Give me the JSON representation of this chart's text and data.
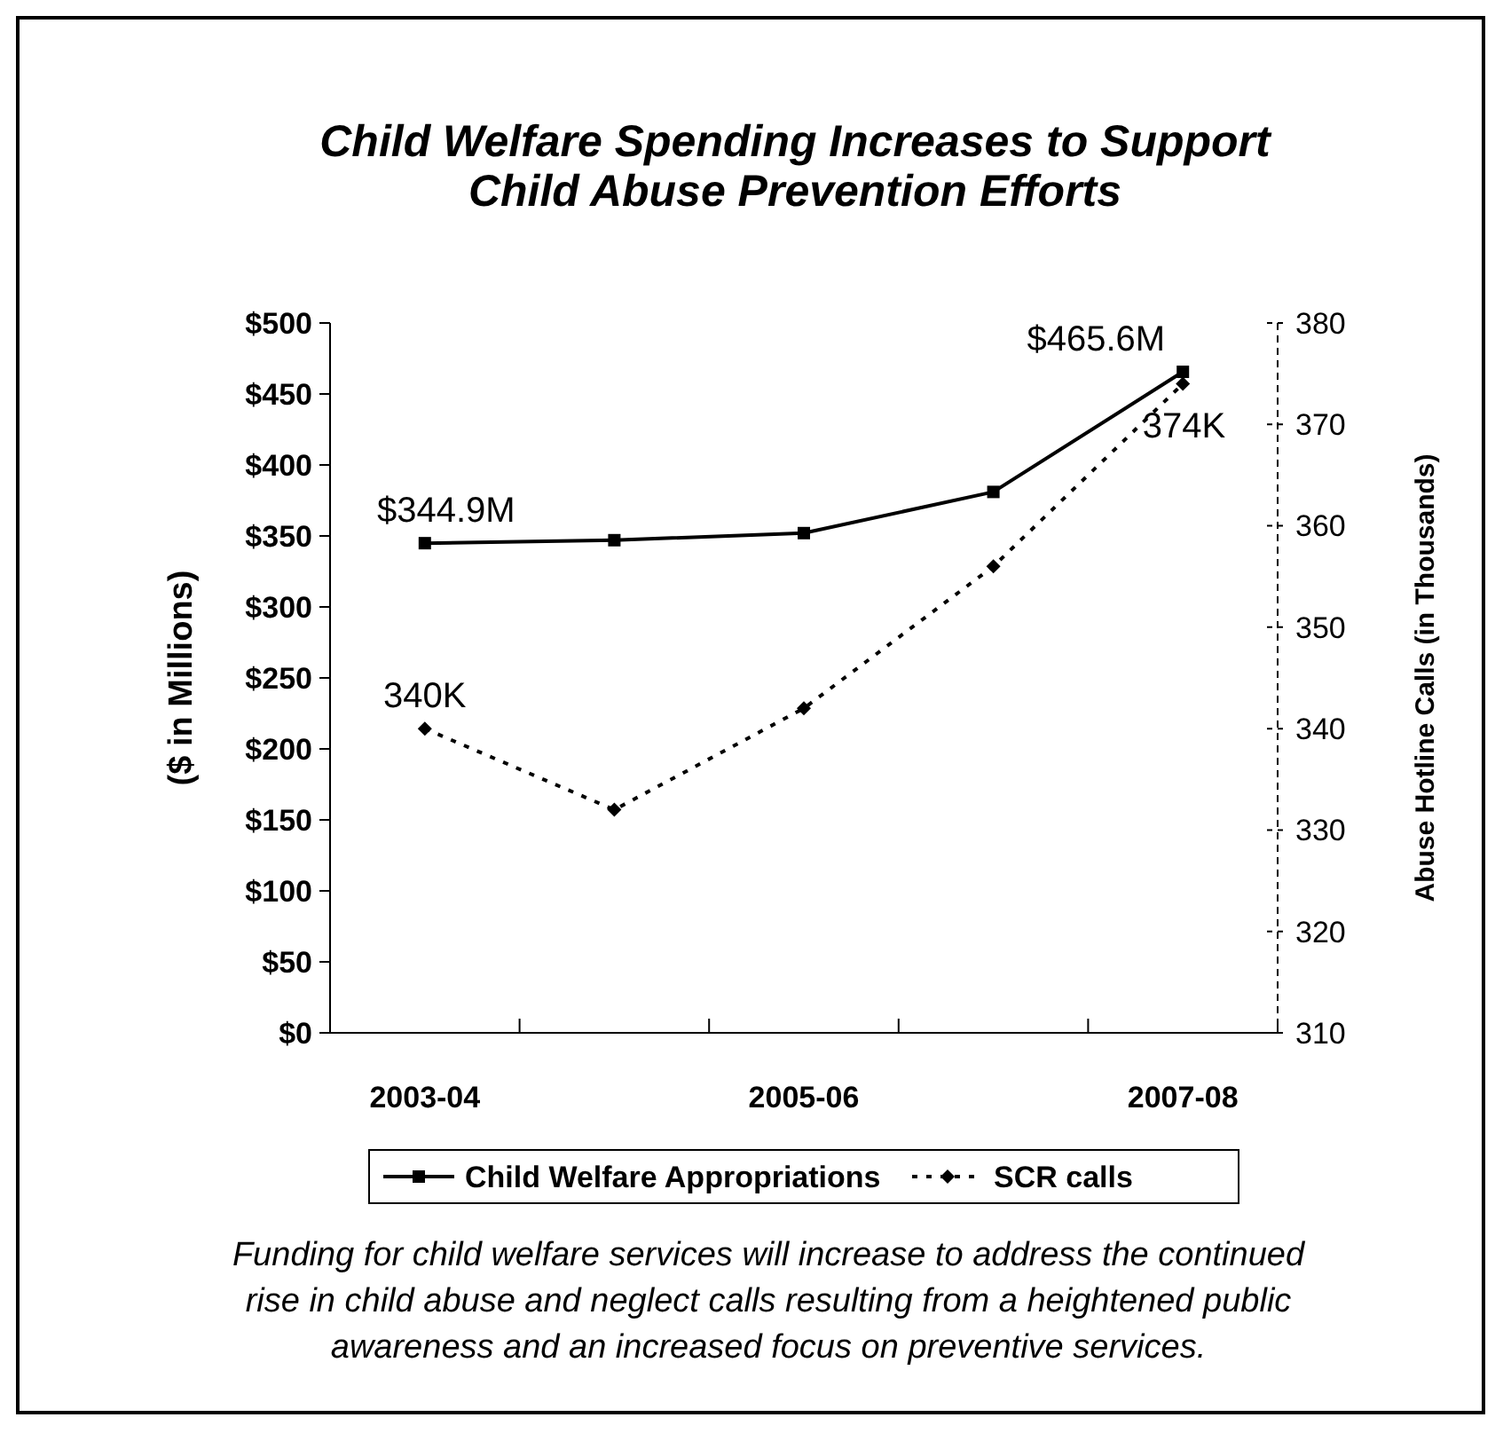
{
  "chart_data": {
    "type": "line",
    "title": "Child Welfare Spending Increases to Support Child Abuse Prevention Efforts",
    "ylabel": "($ in Millions)",
    "y2label": "Abuse Hotline Calls (in Thousands)",
    "categories": [
      "2003-04",
      null,
      "2005-06",
      null,
      "2007-08"
    ],
    "series": [
      {
        "name": "Child Welfare Appropriations",
        "color": "#000000",
        "values": [
          344.9,
          347,
          352,
          381,
          465.6
        ],
        "marker": "square",
        "line_style": "solid",
        "value_labels": [
          "$344.9M",
          null,
          null,
          null,
          "$465.6M"
        ]
      },
      {
        "name": "SCR calls",
        "color": "#000000",
        "values": [
          340,
          332,
          342,
          356,
          374
        ],
        "axis": "y2",
        "marker": "diamond",
        "line_style": "dotted",
        "value_labels": [
          "340K",
          null,
          null,
          null,
          "374K"
        ]
      }
    ],
    "ylim": [
      0,
      500
    ],
    "yticks": [
      {
        "value": 0,
        "label": "$0"
      },
      {
        "value": 50,
        "label": "$50"
      },
      {
        "value": 100,
        "label": "$100"
      },
      {
        "value": 150,
        "label": "$150"
      },
      {
        "value": 200,
        "label": "$200"
      },
      {
        "value": 250,
        "label": "$250"
      },
      {
        "value": 300,
        "label": "$300"
      },
      {
        "value": 350,
        "label": "$350"
      },
      {
        "value": 400,
        "label": "$400"
      },
      {
        "value": 450,
        "label": "$450"
      },
      {
        "value": 500,
        "label": "$500"
      }
    ],
    "y2lim": [
      310,
      380
    ],
    "y2ticks": [
      310,
      320,
      330,
      340,
      350,
      360,
      370,
      380
    ],
    "grid": false,
    "legend": "bottom",
    "annotations": [
      "Funding for child welfare services will increase to address the continued rise in child abuse and neglect calls resulting from a heightened public awareness and an increased focus on preventive services."
    ]
  }
}
